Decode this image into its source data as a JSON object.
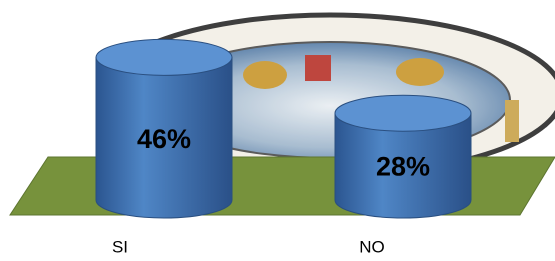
{
  "chart_data": {
    "type": "cylinder",
    "categories": [
      "SI",
      "NO"
    ],
    "values": [
      46,
      28
    ],
    "value_labels": [
      "46%",
      "28%"
    ],
    "color": "#3d6eb0"
  }
}
